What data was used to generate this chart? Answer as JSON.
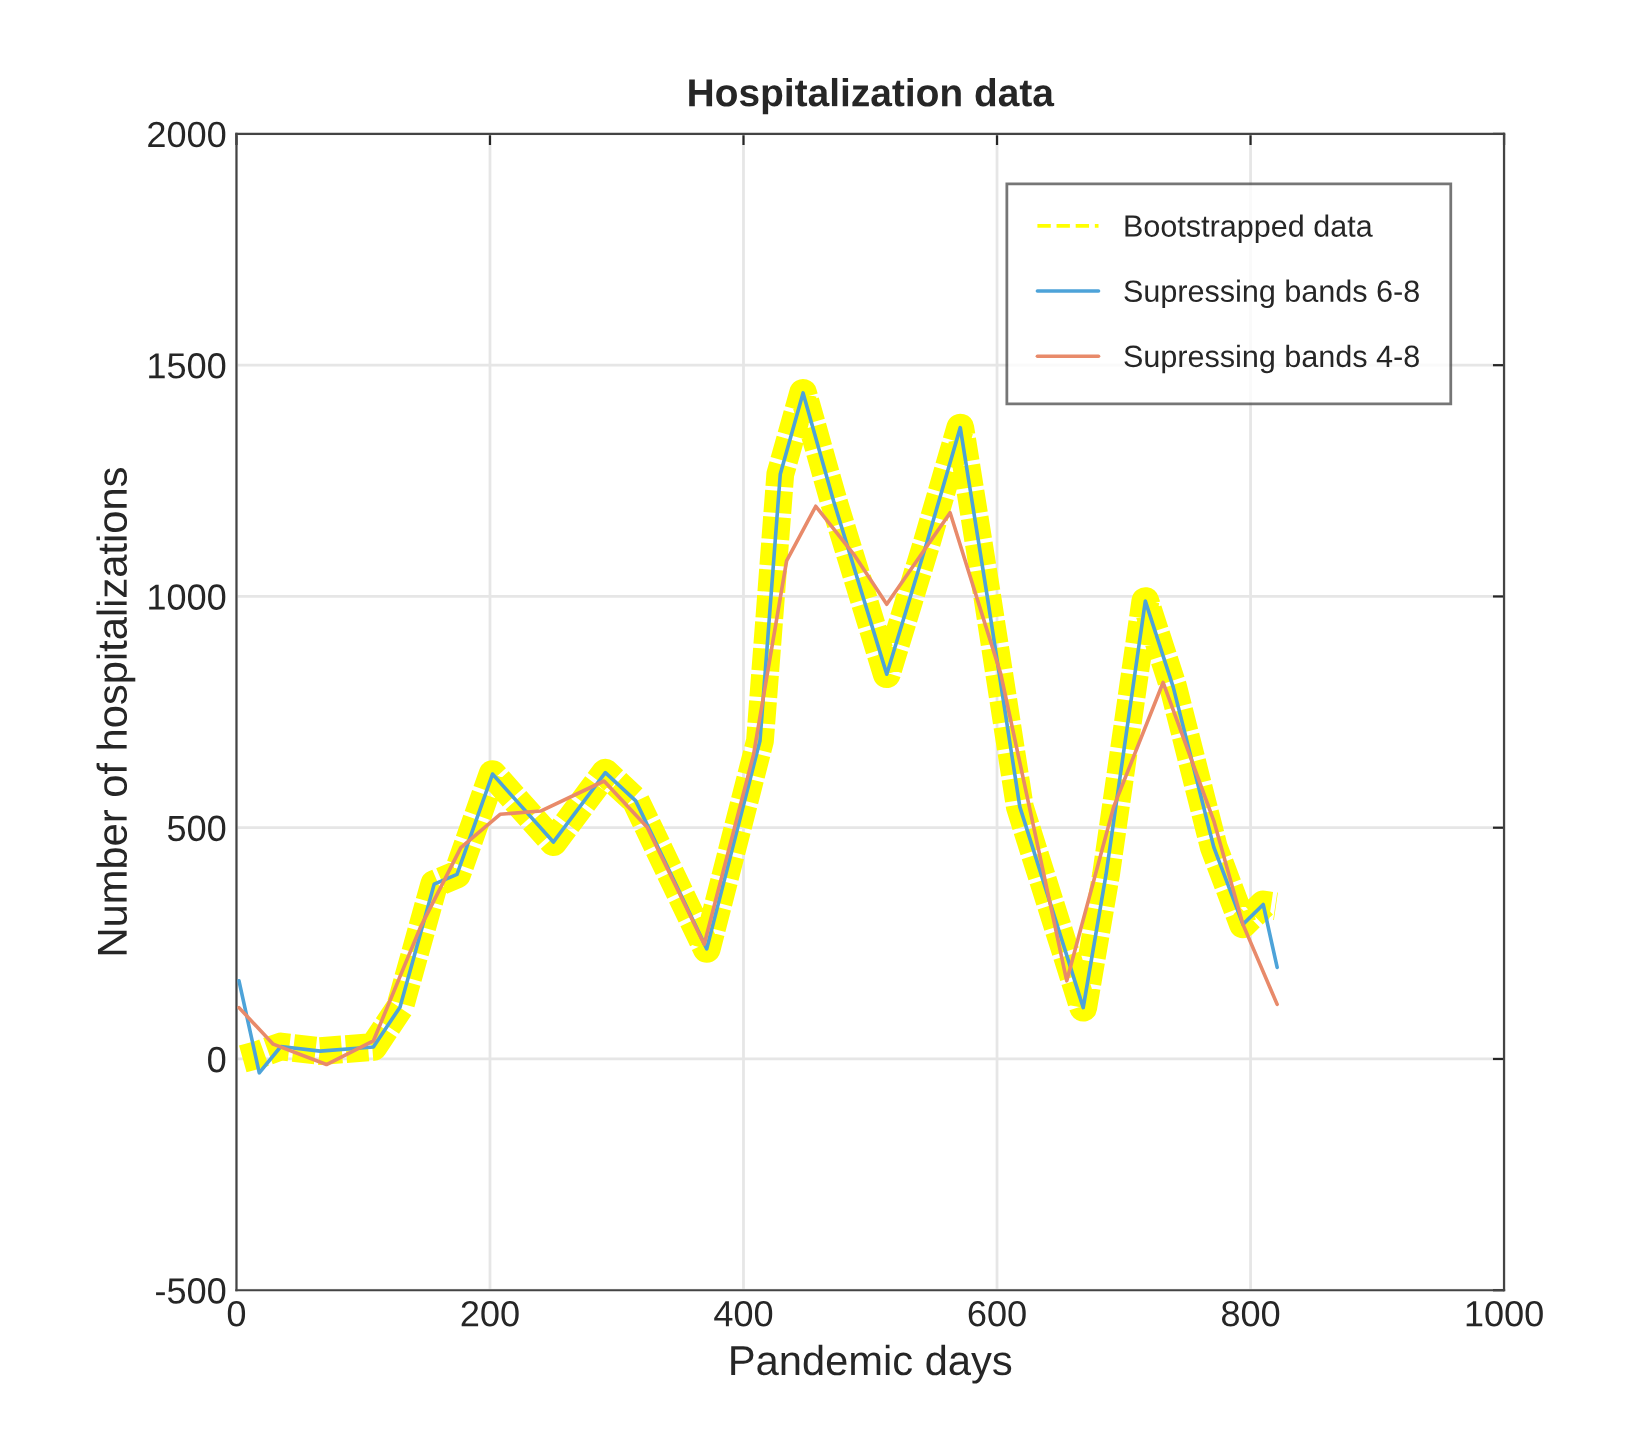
{
  "chart_data": {
    "type": "line",
    "title": "Hospitalization data",
    "xlabel": "Pandemic days",
    "ylabel": "Number of hospitalizations",
    "xlim": [
      0,
      1000
    ],
    "xticks": [
      0,
      200,
      400,
      600,
      800,
      1000
    ],
    "ylim": [
      -500,
      2000
    ],
    "yticks": [
      -500,
      0,
      500,
      1000,
      1500,
      2000
    ],
    "grid": true,
    "legend": "top right",
    "series": [
      {
        "name": "Bootstrapped data",
        "color": "#ffff00",
        "line_style": "dashed",
        "x": [
          5,
          18,
          35,
          66,
          108,
          129,
          156,
          174,
          202,
          250,
          291,
          315,
          371,
          413,
          429,
          447,
          471,
          513,
          545,
          571,
          592,
          618,
          668,
          686,
          717,
          739,
          771,
          794,
          810,
          820
        ],
        "values": [
          0,
          10,
          27,
          17,
          26,
          112,
          378,
          399,
          616,
          469,
          619,
          558,
          238,
          688,
          1264,
          1440,
          1207,
          832,
          1120,
          1365,
          1005,
          545,
          111,
          399,
          990,
          804,
          458,
          291,
          334,
          330
        ]
      },
      {
        "name": "Supressing bands 6-8",
        "color": "#4da3d9",
        "x": [
          2,
          18,
          35,
          66,
          108,
          129,
          156,
          174,
          202,
          250,
          291,
          315,
          371,
          413,
          429,
          447,
          471,
          513,
          545,
          571,
          592,
          618,
          668,
          686,
          717,
          739,
          771,
          794,
          810,
          821
        ],
        "values": [
          169,
          -30,
          27,
          17,
          26,
          112,
          378,
          399,
          616,
          469,
          619,
          558,
          238,
          688,
          1264,
          1440,
          1207,
          832,
          1120,
          1365,
          1005,
          545,
          111,
          399,
          990,
          804,
          458,
          291,
          334,
          198
        ]
      },
      {
        "name": "Supressing bands 4-8",
        "color": "#e88a6a",
        "x": [
          2,
          29,
          71,
          108,
          145,
          177,
          208,
          240,
          290,
          324,
          369,
          408,
          434,
          457,
          487,
          513,
          563,
          603,
          655,
          692,
          731,
          771,
          794,
          821
        ],
        "values": [
          111,
          32,
          -12,
          39,
          284,
          457,
          529,
          536,
          601,
          501,
          248,
          659,
          1077,
          1195,
          1091,
          983,
          1181,
          832,
          169,
          545,
          814,
          515,
          291,
          118
        ]
      }
    ]
  }
}
